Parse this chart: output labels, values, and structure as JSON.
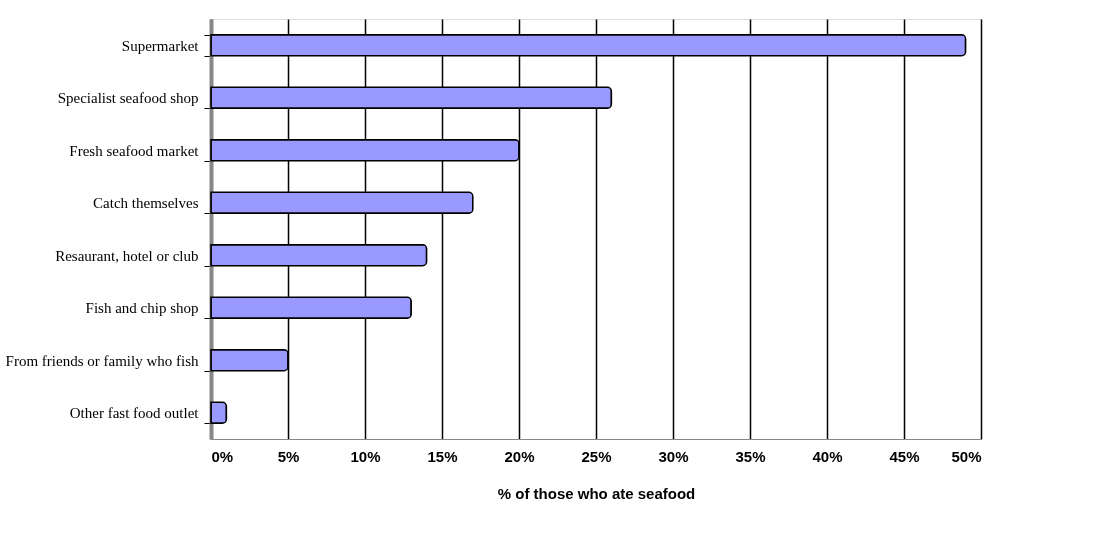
{
  "chart_data": {
    "type": "bar",
    "orientation": "horizontal",
    "xlabel": "% of those who ate seafood",
    "categories": [
      "Supermarket",
      "Specialist seafood shop",
      "Fresh seafood market",
      "Catch themselves",
      "Resaurant, hotel or club",
      "Fish and chip shop",
      "From friends or family who fish",
      "Other fast food outlet"
    ],
    "values": [
      49,
      26,
      20,
      17,
      14,
      13,
      5,
      1
    ],
    "color": "#9999ff",
    "xlim": [
      0,
      50
    ],
    "xticks": [
      {
        "value": 0,
        "label": "0%"
      },
      {
        "value": 5,
        "label": "5%"
      },
      {
        "value": 10,
        "label": "10%"
      },
      {
        "value": 15,
        "label": "15%"
      },
      {
        "value": 20,
        "label": "20%"
      },
      {
        "value": 25,
        "label": "25%"
      },
      {
        "value": 30,
        "label": "30%"
      },
      {
        "value": 35,
        "label": "35%"
      },
      {
        "value": 40,
        "label": "40%"
      },
      {
        "value": 45,
        "label": "45%"
      },
      {
        "value": 50,
        "label": "50%"
      }
    ],
    "grid": "x"
  }
}
